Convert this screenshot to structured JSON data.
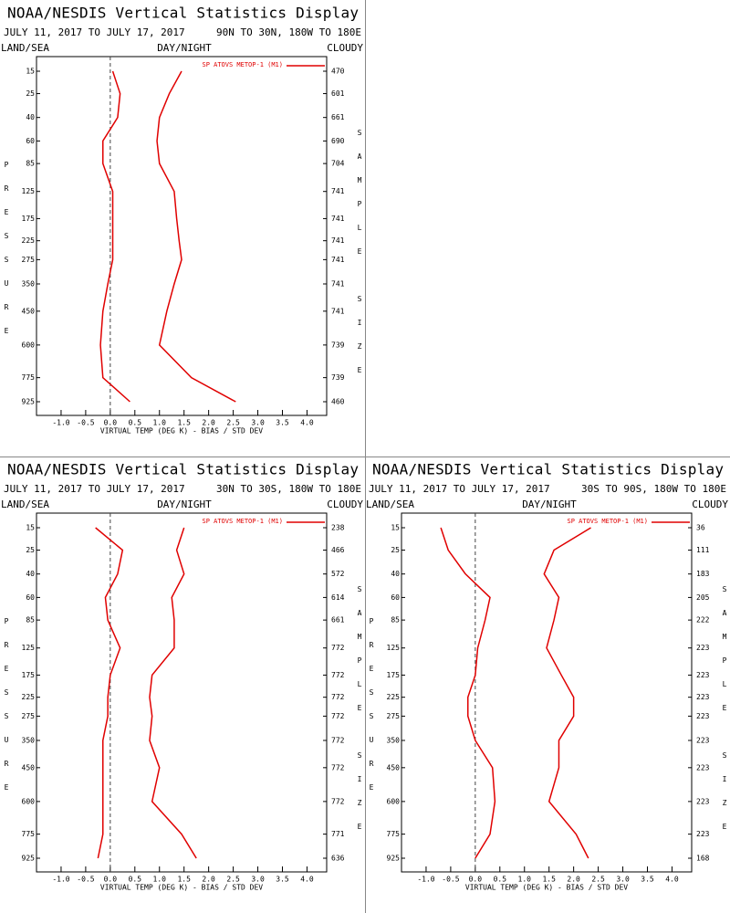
{
  "chart_data": [
    {
      "type": "line",
      "title": "NOAA/NESDIS Vertical Statistics Display",
      "subtitle": "JULY 11, 2017 TO JULY 17, 2017",
      "region": "90N TO 30N, 180W TO 180E",
      "top_labels": [
        "LAND/SEA",
        "DAY/NIGHT",
        "CLOUDY"
      ],
      "ylabel": "PRESSURE",
      "y2label": "SAMPLE SIZE",
      "xlabel": "VIRTUAL TEMP (DEG K) - BIAS / STD DEV",
      "categories": [
        15,
        25,
        40,
        60,
        85,
        125,
        175,
        225,
        275,
        350,
        450,
        600,
        775,
        925
      ],
      "sample_size": [
        470,
        601,
        661,
        690,
        704,
        741,
        741,
        741,
        741,
        741,
        741,
        739,
        739,
        460
      ],
      "series": [
        {
          "name": "SP ATOVS METOP-1 (M1)",
          "color": "#e00000",
          "values": [
            0.05,
            0.2,
            0.15,
            -0.15,
            -0.15,
            0.05,
            0.05,
            0.05,
            0.05,
            -0.05,
            -0.15,
            -0.2,
            -0.15,
            0.4
          ],
          "std_dev": [
            1.45,
            1.2,
            1.0,
            0.95,
            1.0,
            1.3,
            1.35,
            1.4,
            1.45,
            1.3,
            1.15,
            1.0,
            1.65,
            2.55
          ]
        }
      ],
      "xlim": [
        -1.5,
        4.4
      ],
      "xticks": [
        {
          "value": -1,
          "label": "-1.0"
        },
        -0.5,
        {
          "value": 0,
          "label": "0.0"
        },
        0.5,
        {
          "value": 1,
          "label": "1.0"
        },
        1.5,
        {
          "value": 2,
          "label": "2.0"
        },
        2.5,
        {
          "value": 3,
          "label": "3.0"
        },
        3.5,
        {
          "value": 4,
          "label": "4.0"
        }
      ]
    },
    {
      "type": "line",
      "title": "NOAA/NESDIS Vertical Statistics Display",
      "subtitle": "JULY 11, 2017 TO JULY 17, 2017",
      "region": "30N TO 30S, 180W TO 180E",
      "top_labels": [
        "LAND/SEA",
        "DAY/NIGHT",
        "CLOUDY"
      ],
      "ylabel": "PRESSURE",
      "y2label": "SAMPLE SIZE",
      "xlabel": "VIRTUAL TEMP (DEG K) - BIAS / STD DEV",
      "categories": [
        15,
        25,
        40,
        60,
        85,
        125,
        175,
        225,
        275,
        350,
        450,
        600,
        775,
        925
      ],
      "sample_size": [
        238,
        466,
        572,
        614,
        661,
        772,
        772,
        772,
        772,
        772,
        772,
        772,
        771,
        636
      ],
      "series": [
        {
          "name": "SP ATOVS METOP-1 (M1)",
          "color": "#e00000",
          "values": [
            -0.3,
            0.25,
            0.15,
            -0.1,
            -0.05,
            0.2,
            0.0,
            -0.05,
            -0.05,
            -0.15,
            -0.15,
            -0.15,
            -0.15,
            -0.25
          ],
          "std_dev": [
            1.5,
            1.35,
            1.5,
            1.25,
            1.3,
            1.3,
            0.85,
            0.8,
            0.85,
            0.8,
            1.0,
            0.85,
            1.45,
            1.75
          ]
        }
      ],
      "xlim": [
        -1.5,
        4.4
      ],
      "xticks": [
        {
          "value": -1,
          "label": "-1.0"
        },
        -0.5,
        {
          "value": 0,
          "label": "0.0"
        },
        0.5,
        {
          "value": 1,
          "label": "1.0"
        },
        1.5,
        {
          "value": 2,
          "label": "2.0"
        },
        2.5,
        {
          "value": 3,
          "label": "3.0"
        },
        3.5,
        {
          "value": 4,
          "label": "4.0"
        }
      ]
    },
    {
      "type": "line",
      "title": "NOAA/NESDIS Vertical Statistics Display",
      "subtitle": "JULY 11, 2017 TO JULY 17, 2017",
      "region": "30S TO 90S, 180W TO 180E",
      "top_labels": [
        "LAND/SEA",
        "DAY/NIGHT",
        "CLOUDY"
      ],
      "ylabel": "PRESSURE",
      "y2label": "SAMPLE SIZE",
      "xlabel": "VIRTUAL TEMP (DEG K) - BIAS / STD DEV",
      "categories": [
        15,
        25,
        40,
        60,
        85,
        125,
        175,
        225,
        275,
        350,
        450,
        600,
        775,
        925
      ],
      "sample_size": [
        36,
        111,
        183,
        205,
        222,
        223,
        223,
        223,
        223,
        223,
        223,
        223,
        223,
        168
      ],
      "series": [
        {
          "name": "SP ATOVS METOP-1 (M1)",
          "color": "#e00000",
          "values": [
            -0.7,
            -0.55,
            -0.2,
            0.3,
            0.2,
            0.05,
            0.0,
            -0.15,
            -0.15,
            0.0,
            0.35,
            0.4,
            0.3,
            0.0
          ],
          "std_dev": [
            2.35,
            1.6,
            1.4,
            1.7,
            1.6,
            1.45,
            1.75,
            2.0,
            2.0,
            1.7,
            1.7,
            1.5,
            2.05,
            2.3
          ]
        }
      ],
      "xlim": [
        -1.5,
        4.4
      ],
      "xticks": [
        {
          "value": -1,
          "label": "-1.0"
        },
        -0.5,
        {
          "value": 0,
          "label": "0.0"
        },
        0.5,
        {
          "value": 1,
          "label": "1.0"
        },
        1.5,
        {
          "value": 2,
          "label": "2.0"
        },
        2.5,
        {
          "value": 3,
          "label": "3.0"
        },
        3.5,
        {
          "value": 4,
          "label": "4.0"
        }
      ]
    }
  ]
}
